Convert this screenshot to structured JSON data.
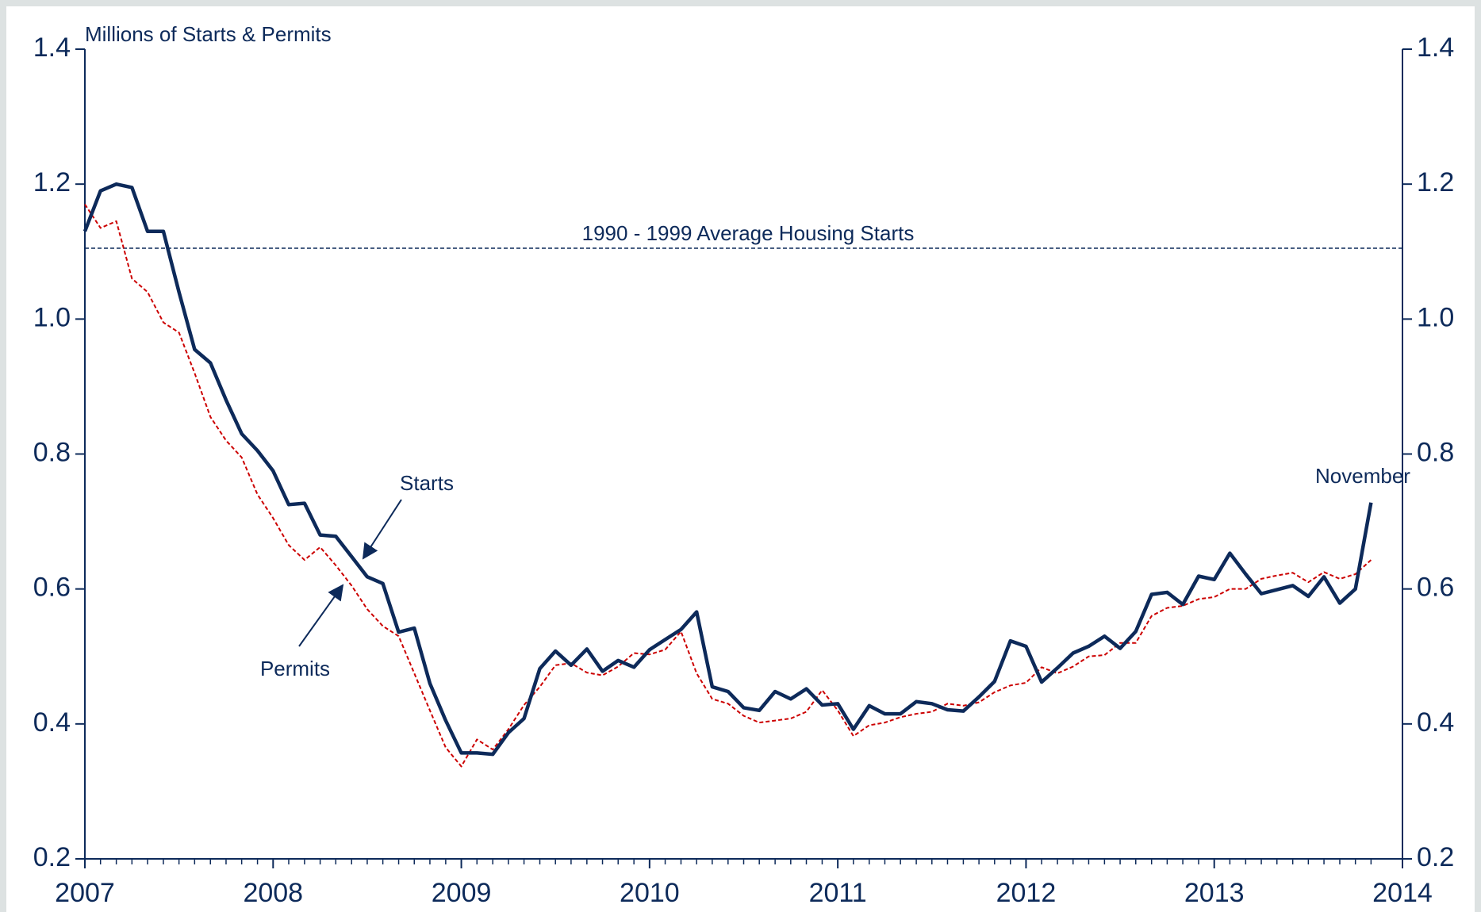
{
  "chart_data": {
    "type": "line",
    "y_label": "Millions of Starts & Permits",
    "x": [
      2007,
      2007.083,
      2007.167,
      2007.25,
      2007.333,
      2007.417,
      2007.5,
      2007.583,
      2007.667,
      2007.75,
      2007.833,
      2007.917,
      2008,
      2008.083,
      2008.167,
      2008.25,
      2008.333,
      2008.417,
      2008.5,
      2008.583,
      2008.667,
      2008.75,
      2008.833,
      2008.917,
      2009,
      2009.083,
      2009.167,
      2009.25,
      2009.333,
      2009.417,
      2009.5,
      2009.583,
      2009.667,
      2009.75,
      2009.833,
      2009.917,
      2010,
      2010.083,
      2010.167,
      2010.25,
      2010.333,
      2010.417,
      2010.5,
      2010.583,
      2010.667,
      2010.75,
      2010.833,
      2010.917,
      2011,
      2011.083,
      2011.167,
      2011.25,
      2011.333,
      2011.417,
      2011.5,
      2011.583,
      2011.667,
      2011.75,
      2011.833,
      2011.917,
      2012,
      2012.083,
      2012.167,
      2012.25,
      2012.333,
      2012.417,
      2012.5,
      2012.583,
      2012.667,
      2012.75,
      2012.833,
      2012.917,
      2013,
      2013.083,
      2013.167,
      2013.25,
      2013.333,
      2013.417,
      2013.5,
      2013.583,
      2013.667,
      2013.75,
      2013.833
    ],
    "series": [
      {
        "name": "Starts",
        "color": "#0d2a5a",
        "style": "solid",
        "values": [
          1.13,
          1.19,
          1.2,
          1.195,
          1.13,
          1.13,
          1.04,
          0.955,
          0.935,
          0.88,
          0.83,
          0.805,
          0.775,
          0.725,
          0.727,
          0.68,
          0.678,
          0.648,
          0.618,
          0.608,
          0.536,
          0.542,
          0.46,
          0.405,
          0.357,
          0.357,
          0.355,
          0.387,
          0.408,
          0.482,
          0.508,
          0.487,
          0.511,
          0.478,
          0.494,
          0.484,
          0.51,
          0.525,
          0.54,
          0.566,
          0.455,
          0.448,
          0.424,
          0.42,
          0.448,
          0.437,
          0.452,
          0.428,
          0.43,
          0.392,
          0.427,
          0.415,
          0.415,
          0.433,
          0.43,
          0.421,
          0.419,
          0.44,
          0.463,
          0.523,
          0.515,
          0.462,
          0.483,
          0.505,
          0.515,
          0.53,
          0.512,
          0.537,
          0.592,
          0.595,
          0.577,
          0.619,
          0.614,
          0.653,
          0.622,
          0.593,
          0.599,
          0.605,
          0.589,
          0.618,
          0.579,
          0.6,
          0.728
        ]
      },
      {
        "name": "Permits",
        "color": "#cc0000",
        "style": "dashed",
        "values": [
          1.17,
          1.135,
          1.145,
          1.06,
          1.04,
          0.995,
          0.98,
          0.92,
          0.855,
          0.82,
          0.795,
          0.74,
          0.705,
          0.665,
          0.643,
          0.662,
          0.635,
          0.605,
          0.57,
          0.545,
          0.53,
          0.475,
          0.42,
          0.365,
          0.337,
          0.377,
          0.362,
          0.392,
          0.428,
          0.455,
          0.487,
          0.49,
          0.476,
          0.472,
          0.485,
          0.505,
          0.503,
          0.51,
          0.537,
          0.475,
          0.437,
          0.43,
          0.412,
          0.402,
          0.405,
          0.408,
          0.418,
          0.45,
          0.42,
          0.382,
          0.398,
          0.402,
          0.41,
          0.415,
          0.418,
          0.43,
          0.427,
          0.432,
          0.447,
          0.457,
          0.461,
          0.484,
          0.475,
          0.485,
          0.5,
          0.502,
          0.52,
          0.52,
          0.56,
          0.572,
          0.575,
          0.585,
          0.588,
          0.6,
          0.6,
          0.615,
          0.62,
          0.624,
          0.61,
          0.625,
          0.615,
          0.622,
          0.643
        ]
      }
    ],
    "reference_line": {
      "value": 1.105,
      "label": "1990 - 1999 Average Housing Starts",
      "color": "#0d2a5a"
    },
    "annotations": [
      "November"
    ],
    "xlim": [
      2007,
      2014
    ],
    "xticks": [
      2007,
      2008,
      2009,
      2010,
      2011,
      2012,
      2013,
      2014
    ],
    "ylim": [
      0.2,
      1.4
    ],
    "yticks": [
      0.2,
      0.4,
      0.6,
      0.8,
      {
        "value": 1,
        "label": "1.0"
      },
      1.2,
      1.4
    ],
    "y2lim": [
      0.2,
      1.4
    ],
    "y2ticks": [
      0.2,
      0.4,
      0.6,
      0.8,
      {
        "value": 1,
        "label": "1.0"
      },
      1.2,
      1.4
    ],
    "grid": false
  }
}
